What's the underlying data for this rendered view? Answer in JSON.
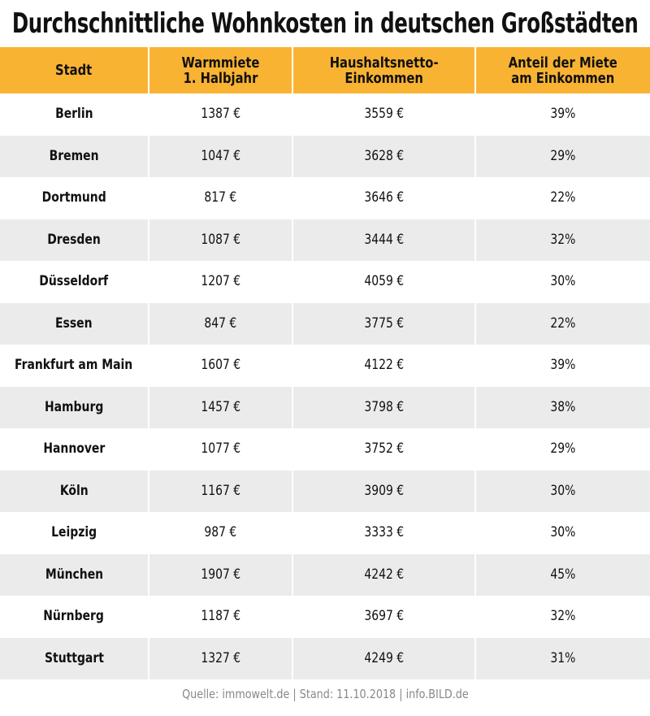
{
  "title": "Durchschnittliche Wohnkosten in deutschen Großstädten",
  "table": {
    "header": [
      "Stadt",
      "Warmmiete\n1. Halbjahr",
      "Haushaltsnetto-\nEinkommen",
      "Anteil der Miete\nam Einkommen"
    ],
    "rows": [
      [
        "Berlin",
        "1387 €",
        "3559 €",
        "39%"
      ],
      [
        "Bremen",
        "1047 €",
        "3628 €",
        "29%"
      ],
      [
        "Dortmund",
        "817 €",
        "3646 €",
        "22%"
      ],
      [
        "Dresden",
        "1087 €",
        "3444 €",
        "32%"
      ],
      [
        "Düsseldorf",
        "1207 €",
        "4059 €",
        "30%"
      ],
      [
        "Essen",
        "847 €",
        "3775 €",
        "22%"
      ],
      [
        "Frankfurt am Main",
        "1607 €",
        "4122 €",
        "39%"
      ],
      [
        "Hamburg",
        "1457 €",
        "3798 €",
        "38%"
      ],
      [
        "Hannover",
        "1077 €",
        "3752 €",
        "29%"
      ],
      [
        "Köln",
        "1167 €",
        "3909 €",
        "30%"
      ],
      [
        "Leipzig",
        "987 €",
        "3333 €",
        "30%"
      ],
      [
        "München",
        "1907 €",
        "4242 €",
        "45%"
      ],
      [
        "Nürnberg",
        "1187 €",
        "3697 €",
        "32%"
      ],
      [
        "Stuttgart",
        "1327 €",
        "4249 €",
        "31%"
      ]
    ]
  },
  "source": "Quelle: immowelt.de | Stand: 11.10.2018 | info.BILD.de"
}
